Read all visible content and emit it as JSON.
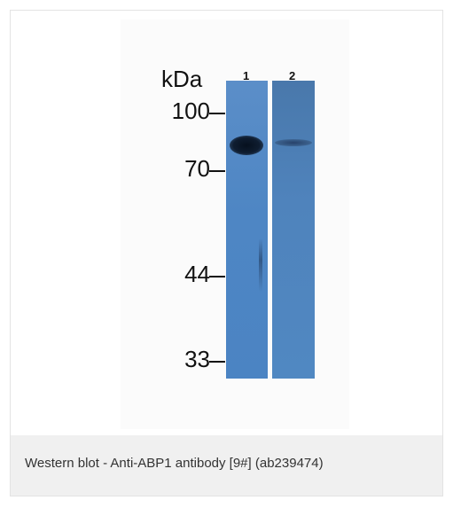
{
  "figure": {
    "unit_label": "kDa",
    "lanes": [
      "1",
      "2"
    ],
    "markers": [
      "100",
      "70",
      "44",
      "33"
    ],
    "caption": "Western blot - Anti-ABP1 antibody [9#] (ab239474)"
  },
  "colors": {
    "membrane_blue": "#4e86c4",
    "band_dark": "#0f1d30",
    "caption_background": "#f0f0f0"
  }
}
